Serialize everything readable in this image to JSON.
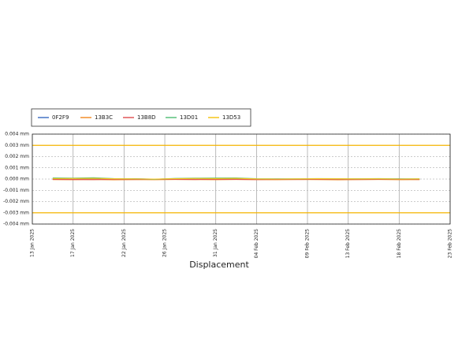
{
  "chart_data": {
    "type": "line",
    "xlabel": "Displacement",
    "x": [
      "2025-01-15",
      "2025-01-17",
      "2025-01-19",
      "2025-01-21",
      "2025-01-23",
      "2025-01-25",
      "2025-01-27",
      "2025-01-29",
      "2025-01-31",
      "2025-02-02",
      "2025-02-04",
      "2025-02-06",
      "2025-02-08",
      "2025-02-10",
      "2025-02-12",
      "2025-02-14",
      "2025-02-16",
      "2025-02-18",
      "2025-02-20"
    ],
    "series": [
      {
        "name": "0F2F9",
        "color": "#4472c4",
        "values": [
          2e-05,
          -3e-05,
          1e-05,
          -2e-05,
          3e-05,
          -1e-05,
          2e-05,
          -2e-05,
          1e-05,
          3e-05,
          -2e-05,
          1e-05,
          -1e-05,
          2e-05,
          -2e-05,
          1e-05,
          -1e-05,
          2e-05,
          -1e-05
        ]
      },
      {
        "name": "13B3C",
        "color": "#f28e2b",
        "values": [
          -5e-05,
          -6e-05,
          -4e-05,
          -7e-05,
          -5e-05,
          -6e-05,
          -4e-05,
          -5e-05,
          -6e-05,
          -4e-05,
          -5e-05,
          -6e-05,
          -4e-05,
          -5e-05,
          -7e-05,
          -5e-05,
          -4e-05,
          -6e-05,
          -5e-05
        ]
      },
      {
        "name": "13B8D",
        "color": "#e15759",
        "values": [
          -3e-05,
          -4e-05,
          -5e-05,
          -3e-05,
          -4e-05,
          -2e-05,
          -3e-05,
          -4e-05,
          -2e-05,
          -3e-05,
          -5e-05,
          -3e-05,
          -4e-05,
          -2e-05,
          -3e-05,
          -4e-05,
          -3e-05,
          -2e-05,
          -4e-05
        ]
      },
      {
        "name": "13D01",
        "color": "#59c17a",
        "values": [
          0.0001,
          8e-05,
          0.00012,
          4e-05,
          2e-05,
          -2e-05,
          6e-05,
          8e-05,
          9e-05,
          0.0001,
          3e-05,
          1e-05,
          2e-05,
          4e-05,
          3e-05,
          2e-05,
          4e-05,
          1e-05,
          2e-05
        ]
      },
      {
        "name": "13D53",
        "color": "#f5c518",
        "values": [
          4e-05,
          5e-05,
          6e-05,
          2e-05,
          1e-05,
          0,
          3e-05,
          5e-05,
          4e-05,
          6e-05,
          1e-05,
          0,
          1e-05,
          3e-05,
          2e-05,
          1e-05,
          2e-05,
          0,
          1e-05
        ]
      }
    ],
    "reference_lines": [
      {
        "value": 0.003,
        "color": "#f5b400"
      },
      {
        "value": -0.003,
        "color": "#f5b400"
      }
    ],
    "xlim": [
      "2025-01-13",
      "2025-02-23"
    ],
    "xticks": [
      {
        "value": "2025-01-13",
        "label": "13 Jan 2025"
      },
      {
        "value": "2025-01-17",
        "label": "17 Jan 2025"
      },
      {
        "value": "2025-01-22",
        "label": "22 Jan 2025"
      },
      {
        "value": "2025-01-26",
        "label": "26 Jan 2025"
      },
      {
        "value": "2025-01-31",
        "label": "31 Jan 2025"
      },
      {
        "value": "2025-02-04",
        "label": "04 Feb 2025"
      },
      {
        "value": "2025-02-09",
        "label": "09 Feb 2025"
      },
      {
        "value": "2025-02-13",
        "label": "13 Feb 2025"
      },
      {
        "value": "2025-02-18",
        "label": "18 Feb 2025"
      },
      {
        "value": "2025-02-23",
        "label": "23 Feb 2025"
      }
    ],
    "ylim": [
      -0.004,
      0.004
    ],
    "yticks": [
      {
        "value": 0.004,
        "label": "0.004 mm"
      },
      {
        "value": 0.003,
        "label": "0.003 mm"
      },
      {
        "value": 0.002,
        "label": "0.002 mm"
      },
      {
        "value": 0.001,
        "label": "0.001 mm"
      },
      {
        "value": 0,
        "label": "0.000 mm"
      },
      {
        "value": -0.001,
        "label": "-0.001 mm"
      },
      {
        "value": -0.002,
        "label": "-0.002 mm"
      },
      {
        "value": -0.003,
        "label": "-0.003 mm"
      },
      {
        "value": -0.004,
        "label": "-0.004 mm"
      }
    ],
    "grid": true
  }
}
